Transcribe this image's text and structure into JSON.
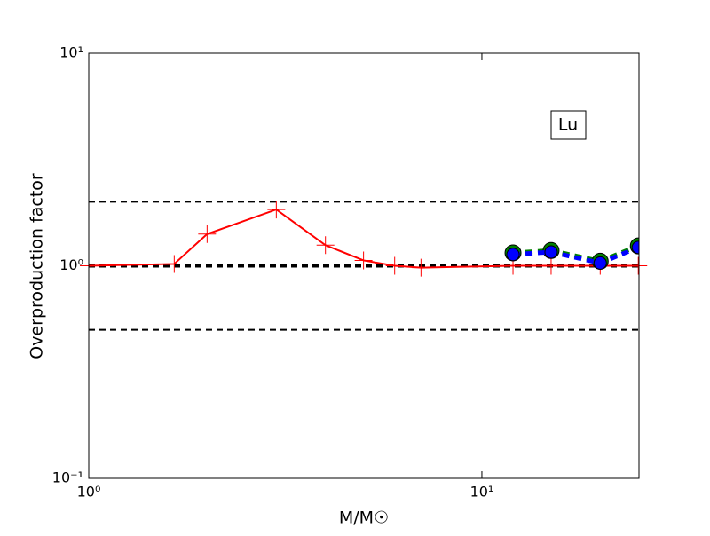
{
  "chart_data": {
    "type": "line",
    "annotation": "Lu",
    "xlabel": "M/M☉",
    "ylabel": "Overproduction factor",
    "xscale": "log",
    "yscale": "log",
    "xlim": [
      1,
      25.1
    ],
    "ylim": [
      0.1,
      10
    ],
    "xticks": [
      {
        "value": 1,
        "label": "10⁰"
      },
      {
        "value": 10,
        "label": "10¹"
      }
    ],
    "yticks": [
      {
        "value": 0.1,
        "label": "10⁻¹"
      },
      {
        "value": 1,
        "label": "10⁰"
      },
      {
        "value": 10,
        "label": "10¹"
      }
    ],
    "reference_lines": [
      2,
      1,
      0.5
    ],
    "series": [
      {
        "color": "#ff0000",
        "marker": "plus",
        "x": [
          1,
          1.65,
          2,
          3,
          4,
          5,
          6,
          7,
          12,
          15,
          20,
          25
        ],
        "values": [
          1.0,
          1.02,
          1.41,
          1.84,
          1.25,
          1.06,
          1.0,
          0.98,
          1.0,
          1.0,
          1.0,
          1.0
        ]
      },
      {
        "color": "#008000",
        "marker": "circle",
        "x": [
          12,
          15,
          20,
          25
        ],
        "values": [
          1.15,
          1.18,
          1.05,
          1.24
        ]
      },
      {
        "color": "#0000ff",
        "marker": "circle",
        "x": [
          12,
          15,
          20,
          25
        ],
        "values": [
          1.13,
          1.16,
          1.03,
          1.22
        ]
      }
    ]
  }
}
